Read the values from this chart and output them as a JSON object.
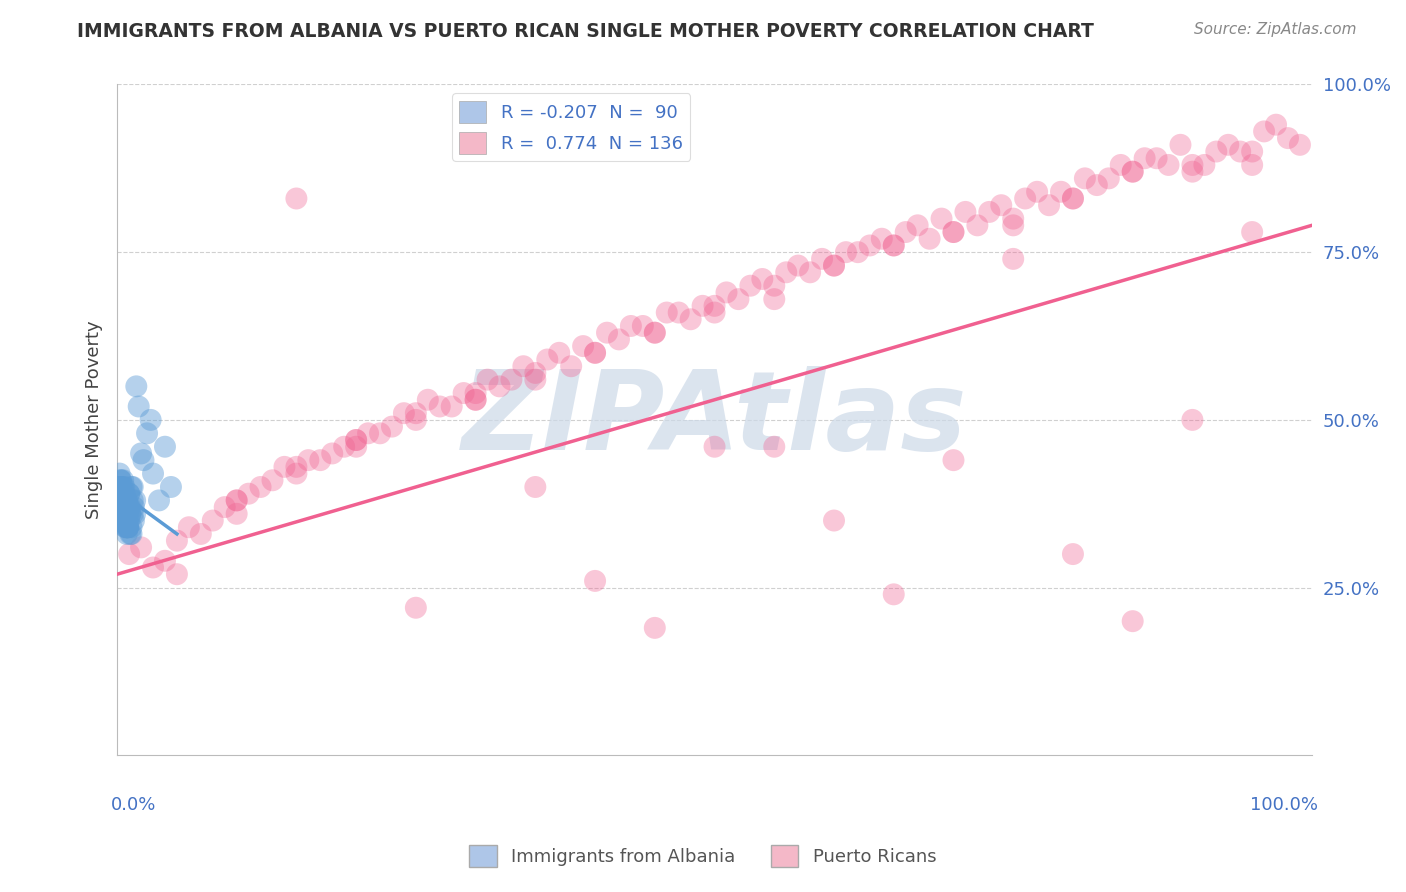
{
  "title": "IMMIGRANTS FROM ALBANIA VS PUERTO RICAN SINGLE MOTHER POVERTY CORRELATION CHART",
  "source": "Source: ZipAtlas.com",
  "ylabel": "Single Mother Poverty",
  "xlim": [
    0,
    1
  ],
  "ylim": [
    0,
    1
  ],
  "blue_scatter_x": [
    0.005,
    0.008,
    0.003,
    0.012,
    0.006,
    0.002,
    0.007,
    0.004,
    0.009,
    0.011,
    0.015,
    0.013,
    0.001,
    0.006,
    0.008,
    0.01,
    0.003,
    0.005,
    0.007,
    0.009,
    0.014,
    0.002,
    0.006,
    0.004,
    0.008,
    0.011,
    0.003,
    0.007,
    0.005,
    0.009,
    0.013,
    0.006,
    0.002,
    0.008,
    0.01,
    0.004,
    0.006,
    0.003,
    0.007,
    0.009,
    0.012,
    0.005,
    0.008,
    0.002,
    0.006,
    0.01,
    0.004,
    0.007,
    0.003,
    0.009,
    0.011,
    0.014,
    0.006,
    0.002,
    0.008,
    0.005,
    0.01,
    0.003,
    0.007,
    0.004,
    0.009,
    0.012,
    0.006,
    0.001,
    0.008,
    0.015,
    0.003,
    0.007,
    0.005,
    0.01,
    0.013,
    0.006,
    0.002,
    0.008,
    0.004,
    0.009,
    0.011,
    0.006,
    0.003,
    0.007,
    0.02,
    0.018,
    0.025,
    0.022,
    0.016,
    0.03,
    0.035,
    0.028,
    0.04,
    0.045
  ],
  "blue_scatter_y": [
    0.35,
    0.38,
    0.4,
    0.33,
    0.36,
    0.42,
    0.37,
    0.39,
    0.34,
    0.36,
    0.38,
    0.4,
    0.35,
    0.37,
    0.33,
    0.39,
    0.41,
    0.36,
    0.38,
    0.34,
    0.37,
    0.4,
    0.35,
    0.38,
    0.36,
    0.33,
    0.39,
    0.37,
    0.41,
    0.35,
    0.38,
    0.36,
    0.4,
    0.34,
    0.37,
    0.39,
    0.36,
    0.38,
    0.35,
    0.37,
    0.34,
    0.4,
    0.36,
    0.38,
    0.35,
    0.37,
    0.39,
    0.36,
    0.38,
    0.34,
    0.37,
    0.35,
    0.4,
    0.38,
    0.36,
    0.39,
    0.35,
    0.37,
    0.34,
    0.38,
    0.36,
    0.4,
    0.37,
    0.35,
    0.38,
    0.36,
    0.4,
    0.34,
    0.37,
    0.39,
    0.36,
    0.38,
    0.4,
    0.35,
    0.37,
    0.34,
    0.36,
    0.39,
    0.41,
    0.37,
    0.45,
    0.52,
    0.48,
    0.44,
    0.55,
    0.42,
    0.38,
    0.5,
    0.46,
    0.4
  ],
  "pink_scatter_x": [
    0.01,
    0.03,
    0.05,
    0.08,
    0.1,
    0.12,
    0.15,
    0.18,
    0.2,
    0.22,
    0.25,
    0.28,
    0.3,
    0.32,
    0.35,
    0.38,
    0.4,
    0.42,
    0.45,
    0.48,
    0.5,
    0.52,
    0.55,
    0.58,
    0.6,
    0.62,
    0.65,
    0.68,
    0.7,
    0.72,
    0.75,
    0.78,
    0.8,
    0.82,
    0.85,
    0.88,
    0.9,
    0.92,
    0.95,
    0.98,
    0.02,
    0.04,
    0.06,
    0.09,
    0.11,
    0.14,
    0.16,
    0.19,
    0.21,
    0.24,
    0.26,
    0.29,
    0.31,
    0.34,
    0.36,
    0.39,
    0.41,
    0.44,
    0.46,
    0.49,
    0.51,
    0.54,
    0.56,
    0.59,
    0.61,
    0.64,
    0.66,
    0.69,
    0.71,
    0.74,
    0.76,
    0.79,
    0.81,
    0.84,
    0.86,
    0.89,
    0.91,
    0.94,
    0.96,
    0.99,
    0.07,
    0.13,
    0.17,
    0.23,
    0.27,
    0.33,
    0.37,
    0.43,
    0.47,
    0.53,
    0.57,
    0.63,
    0.67,
    0.73,
    0.77,
    0.83,
    0.87,
    0.93,
    0.97,
    0.2,
    0.4,
    0.6,
    0.8,
    0.15,
    0.35,
    0.55,
    0.75,
    0.95,
    0.25,
    0.45,
    0.65,
    0.85,
    0.1,
    0.3,
    0.5,
    0.7,
    0.9,
    0.05,
    0.25,
    0.45,
    0.65,
    0.85,
    0.2,
    0.4,
    0.6,
    0.8,
    0.1,
    0.3,
    0.5,
    0.7,
    0.9,
    0.15,
    0.35,
    0.55,
    0.75,
    0.95
  ],
  "pink_scatter_y": [
    0.3,
    0.28,
    0.32,
    0.35,
    0.38,
    0.4,
    0.42,
    0.45,
    0.47,
    0.48,
    0.5,
    0.52,
    0.53,
    0.55,
    0.57,
    0.58,
    0.6,
    0.62,
    0.63,
    0.65,
    0.67,
    0.68,
    0.7,
    0.72,
    0.73,
    0.75,
    0.76,
    0.77,
    0.78,
    0.79,
    0.8,
    0.82,
    0.83,
    0.85,
    0.87,
    0.88,
    0.87,
    0.9,
    0.88,
    0.92,
    0.31,
    0.29,
    0.34,
    0.37,
    0.39,
    0.43,
    0.44,
    0.46,
    0.48,
    0.51,
    0.53,
    0.54,
    0.56,
    0.58,
    0.59,
    0.61,
    0.63,
    0.64,
    0.66,
    0.67,
    0.69,
    0.71,
    0.72,
    0.74,
    0.75,
    0.77,
    0.78,
    0.8,
    0.81,
    0.82,
    0.83,
    0.84,
    0.86,
    0.88,
    0.89,
    0.91,
    0.88,
    0.9,
    0.93,
    0.91,
    0.33,
    0.41,
    0.44,
    0.49,
    0.52,
    0.56,
    0.6,
    0.64,
    0.66,
    0.7,
    0.73,
    0.76,
    0.79,
    0.81,
    0.84,
    0.86,
    0.89,
    0.91,
    0.94,
    0.47,
    0.6,
    0.73,
    0.83,
    0.43,
    0.56,
    0.68,
    0.79,
    0.9,
    0.51,
    0.63,
    0.76,
    0.87,
    0.38,
    0.54,
    0.66,
    0.78,
    0.88,
    0.27,
    0.22,
    0.19,
    0.24,
    0.2,
    0.46,
    0.26,
    0.35,
    0.3,
    0.36,
    0.53,
    0.46,
    0.44,
    0.5,
    0.83,
    0.4,
    0.46,
    0.74,
    0.78
  ],
  "blue_line_x": [
    0.0,
    0.05
  ],
  "blue_line_y": [
    0.395,
    0.33
  ],
  "pink_line_x": [
    0.0,
    1.0
  ],
  "pink_line_y": [
    0.27,
    0.79
  ],
  "blue_color": "#5b9bd5",
  "pink_color": "#f06090",
  "blue_fill": "#aec6e8",
  "pink_fill": "#f4b8c8",
  "watermark": "ZIPAtlas",
  "watermark_color": "#ccd9e8",
  "title_color": "#333333",
  "axis_color": "#4472c4",
  "grid_color": "#d0d0d0",
  "background_color": "#ffffff",
  "legend1_r": "-0.207",
  "legend1_n": "90",
  "legend2_r": "0.774",
  "legend2_n": "136"
}
